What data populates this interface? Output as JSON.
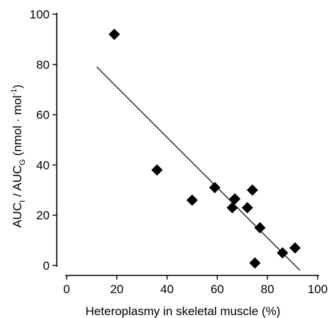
{
  "chart_data": {
    "type": "scatter",
    "xlabel": "Heteroplasmy in skeletal muscle (%)",
    "ylabel": {
      "part1": "AUC",
      "sub1": "I",
      "part2": " / AUC",
      "sub2": "G",
      "part3": " (nmol · mol",
      "sup": "-1",
      "part4": ")"
    },
    "xlim": [
      0,
      100
    ],
    "ylim": [
      0,
      100
    ],
    "x_ticks": [
      0,
      20,
      40,
      60,
      80,
      100
    ],
    "y_ticks": [
      0,
      20,
      40,
      60,
      80,
      100
    ],
    "x_tick_labels": [
      "0",
      "20",
      "40",
      "60",
      "80",
      "100"
    ],
    "y_tick_labels": [
      "0",
      "20",
      "40",
      "60",
      "80",
      "100"
    ],
    "points": [
      {
        "x": 19,
        "y": 92
      },
      {
        "x": 36,
        "y": 38
      },
      {
        "x": 50,
        "y": 26
      },
      {
        "x": 59,
        "y": 31
      },
      {
        "x": 66,
        "y": 23
      },
      {
        "x": 67,
        "y": 26.5
      },
      {
        "x": 72,
        "y": 23
      },
      {
        "x": 74,
        "y": 30
      },
      {
        "x": 75,
        "y": 1
      },
      {
        "x": 77,
        "y": 15
      },
      {
        "x": 86,
        "y": 5
      },
      {
        "x": 91,
        "y": 7
      }
    ],
    "fit_line": {
      "x1": 12,
      "y1": 79,
      "x2": 93,
      "y2": -2
    },
    "marker": "diamond",
    "color": "#000000"
  }
}
